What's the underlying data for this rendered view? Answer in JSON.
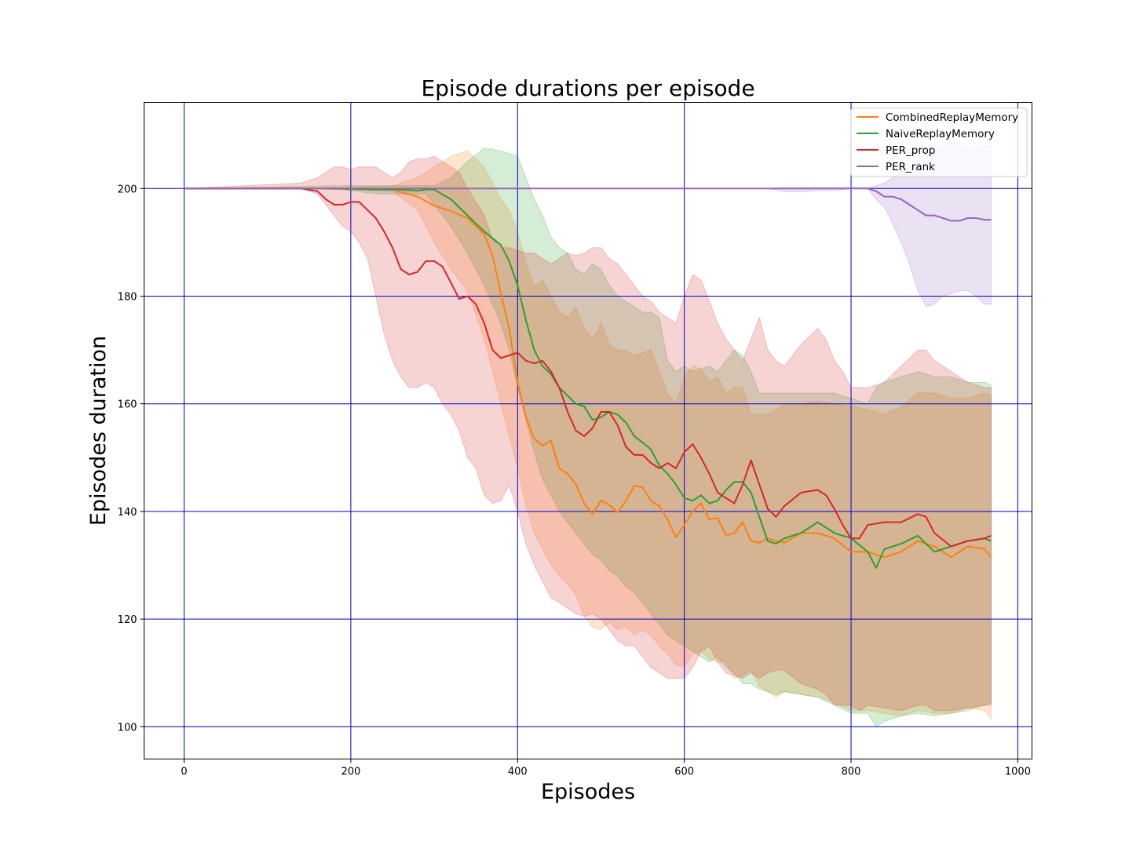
{
  "chart_data": {
    "type": "line",
    "title": "Episode durations per episode",
    "xlabel": "Episodes",
    "ylabel": "Episodes duration",
    "xlim": [
      -48,
      1017
    ],
    "ylim": [
      94,
      216
    ],
    "xticks": [
      0,
      200,
      400,
      600,
      800,
      1000
    ],
    "yticks": [
      100,
      120,
      140,
      160,
      180,
      200
    ],
    "grid": true,
    "grid_color": "#0000cc",
    "legend_position": "top-right",
    "series": [
      {
        "name": "CombinedReplayMemory",
        "color": "#ff7f0e",
        "x": [
          0,
          150,
          250,
          280,
          300,
          320,
          340,
          360,
          370,
          380,
          390,
          400,
          410,
          420,
          430,
          440,
          450,
          460,
          470,
          480,
          490,
          500,
          510,
          520,
          530,
          540,
          550,
          560,
          570,
          580,
          590,
          600,
          610,
          620,
          630,
          640,
          650,
          660,
          670,
          680,
          690,
          700,
          710,
          720,
          740,
          760,
          780,
          800,
          820,
          840,
          860,
          880,
          900,
          920,
          940,
          960,
          968
        ],
        "y": [
          200,
          200,
          199.8,
          198.5,
          196.8,
          195.8,
          194.5,
          191.5,
          187.5,
          180.5,
          174,
          164,
          157.5,
          153.5,
          152.2,
          153.2,
          148,
          147,
          145,
          141.5,
          139.5,
          142,
          141.2,
          139.8,
          142,
          144.8,
          144.5,
          142,
          141,
          138.5,
          135.2,
          137.5,
          140,
          141.5,
          138.5,
          138.8,
          135.5,
          136,
          138,
          134.5,
          134.2,
          135,
          134.5,
          134.2,
          136,
          136,
          135,
          132.5,
          132.5,
          131.5,
          132.5,
          134.5,
          133.5,
          131.5,
          133.5,
          133,
          131.5
        ],
        "lower": [
          200,
          200,
          199.5,
          196,
          190,
          185,
          181,
          172,
          166,
          160,
          154,
          148,
          141,
          136,
          133,
          130,
          128,
          126.5,
          124.5,
          120.5,
          118.5,
          118,
          119.5,
          118,
          118.5,
          117,
          118,
          117,
          115,
          113.5,
          111.5,
          111,
          113.5,
          114,
          112.5,
          112,
          112,
          109,
          109.5,
          110.5,
          107.5,
          106.5,
          105.5,
          106.5,
          106,
          105.5,
          104.5,
          103,
          103,
          102.5,
          102,
          103,
          102.5,
          102.5,
          103.5,
          103,
          101.5
        ],
        "upper": [
          200,
          200,
          200.5,
          202,
          204,
          206,
          207,
          204,
          201,
          198,
          196,
          192,
          186,
          182,
          183,
          180,
          177,
          176,
          178,
          174,
          172,
          175,
          171,
          170,
          170,
          169,
          169.5,
          170,
          166,
          162,
          160,
          165,
          167,
          166.5,
          164,
          165,
          162,
          163,
          163,
          158,
          158,
          158,
          159,
          160,
          160,
          160.5,
          160,
          159.5,
          159,
          158,
          159.5,
          162,
          162,
          161,
          161,
          162,
          161.5
        ]
      },
      {
        "name": "NaiveReplayMemory",
        "color": "#2ca02c",
        "x": [
          0,
          180,
          230,
          260,
          280,
          290,
          300,
          320,
          340,
          360,
          380,
          390,
          400,
          410,
          420,
          430,
          440,
          450,
          460,
          470,
          480,
          490,
          500,
          510,
          520,
          530,
          540,
          550,
          560,
          570,
          580,
          590,
          600,
          610,
          620,
          630,
          640,
          650,
          660,
          670,
          680,
          690,
          700,
          710,
          720,
          740,
          760,
          780,
          800,
          820,
          830,
          840,
          860,
          880,
          900,
          920,
          940,
          960,
          968
        ],
        "y": [
          200,
          200,
          199.8,
          199.8,
          199.6,
          199.8,
          199.8,
          198,
          195,
          192,
          189.5,
          186.5,
          182,
          175.5,
          170,
          167,
          165.5,
          163,
          161.5,
          160,
          159.5,
          157,
          157.5,
          158.5,
          158,
          156.5,
          154,
          152.8,
          151.5,
          148.5,
          147,
          145,
          142.5,
          142,
          143,
          141.5,
          142,
          144,
          145.5,
          145.5,
          143.5,
          139,
          134.5,
          134,
          135,
          136,
          138,
          136,
          135,
          132.5,
          129.5,
          133,
          134,
          135.5,
          132.5,
          133.5,
          134.5,
          135,
          134.5
        ],
        "lower": [
          200,
          200,
          199,
          199,
          199,
          199,
          197,
          193,
          188,
          182,
          175,
          170,
          163,
          157,
          151,
          146,
          143,
          140,
          138,
          136,
          134,
          132,
          131,
          129,
          128,
          126,
          125,
          123,
          121,
          119,
          117,
          116,
          115,
          114,
          113,
          112,
          113,
          111,
          110,
          108,
          108,
          107,
          106.5,
          106,
          106.5,
          106,
          105.5,
          104,
          102.5,
          102.5,
          100,
          101,
          102,
          102.5,
          102,
          102.5,
          103,
          104,
          104.5
        ],
        "upper": [
          200,
          200.5,
          200.5,
          200.5,
          200.5,
          200.5,
          200.5,
          202,
          205,
          207.5,
          207,
          206.5,
          206,
          202,
          198,
          195,
          191,
          189,
          188,
          185,
          184,
          186,
          185,
          182,
          180,
          179,
          178,
          177,
          177,
          176,
          168,
          166,
          167,
          166,
          166.5,
          167,
          166,
          168,
          170,
          169,
          166,
          162,
          162,
          162,
          162,
          162,
          162,
          162,
          161,
          160,
          163,
          164,
          165,
          166,
          165,
          165,
          164,
          164,
          163.5
        ]
      },
      {
        "name": "PER_prop",
        "color": "#d62728",
        "x": [
          0,
          140,
          160,
          170,
          180,
          190,
          200,
          210,
          220,
          230,
          240,
          250,
          260,
          270,
          280,
          290,
          300,
          310,
          320,
          330,
          340,
          350,
          360,
          370,
          380,
          390,
          400,
          410,
          420,
          430,
          440,
          450,
          460,
          470,
          480,
          490,
          500,
          510,
          520,
          530,
          540,
          550,
          560,
          570,
          580,
          590,
          600,
          610,
          620,
          630,
          640,
          650,
          660,
          670,
          680,
          690,
          700,
          710,
          720,
          740,
          760,
          770,
          780,
          790,
          800,
          810,
          820,
          840,
          860,
          880,
          890,
          900,
          920,
          940,
          960,
          968
        ],
        "y": [
          200,
          200,
          199.5,
          198,
          197,
          197,
          197.5,
          197.5,
          196,
          194.5,
          192,
          189,
          185,
          184,
          184.5,
          186.5,
          186.5,
          185.5,
          182.5,
          179.5,
          180,
          178.5,
          175,
          170,
          168.5,
          169,
          169.5,
          168,
          167.5,
          168,
          166,
          163,
          158.5,
          155,
          154,
          155.5,
          158.5,
          158.5,
          156,
          152,
          150.5,
          150.5,
          149,
          148,
          149,
          148,
          151,
          152.5,
          150,
          147,
          143.5,
          142.5,
          141.5,
          145,
          149.5,
          145,
          140.5,
          139,
          141,
          143.5,
          144,
          143,
          140.5,
          137.5,
          135,
          135,
          137.5,
          138,
          138,
          139.5,
          139,
          136,
          133.5,
          134.5,
          135,
          135.5
        ],
        "lower": [
          200,
          200,
          199,
          197,
          195,
          193,
          192,
          190,
          187,
          180,
          173,
          168,
          165,
          163,
          163,
          164,
          163,
          160,
          158,
          155,
          150,
          148,
          143,
          141.5,
          142,
          145,
          140,
          134,
          130,
          127,
          124,
          123,
          122,
          121,
          120.5,
          121,
          120,
          118,
          116,
          115,
          115,
          113,
          111,
          110,
          109,
          109,
          109,
          111,
          114,
          115,
          112,
          110,
          109.5,
          109,
          110,
          109,
          110,
          110.5,
          110.5,
          108,
          107,
          106,
          104,
          104,
          104,
          103,
          104,
          103.5,
          103,
          104,
          104,
          103,
          103,
          103.5,
          104,
          104
        ],
        "upper": [
          200,
          201,
          202,
          203,
          204,
          204,
          203.5,
          204,
          204,
          204,
          203,
          202,
          203,
          205,
          205.5,
          205.5,
          206,
          205,
          204,
          203,
          200,
          197.5,
          195,
          190.5,
          189,
          189,
          188.5,
          188,
          188,
          187,
          186,
          187,
          188,
          187.5,
          188,
          189,
          189,
          187,
          186,
          184,
          182,
          180,
          179,
          177,
          176,
          175,
          180,
          184,
          183,
          179,
          175,
          172,
          170,
          168,
          172,
          176,
          170,
          168,
          167,
          171,
          174,
          172,
          168,
          166,
          163,
          163,
          163,
          164,
          167,
          170,
          170,
          168,
          166,
          164,
          163,
          163
        ]
      },
      {
        "name": "PER_rank",
        "color": "#9467bd",
        "x": [
          0,
          700,
          720,
          740,
          760,
          780,
          800,
          820,
          830,
          840,
          850,
          860,
          870,
          880,
          890,
          900,
          910,
          920,
          930,
          940,
          950,
          960,
          968
        ],
        "y": [
          200,
          200,
          200,
          200,
          200,
          200,
          200,
          200,
          199.5,
          198.5,
          198.5,
          198,
          197,
          196,
          195,
          195,
          194.5,
          194,
          194,
          194.5,
          194.5,
          194.2,
          194.2
        ],
        "lower": [
          200,
          200,
          199.4,
          199.4,
          199.6,
          199.6,
          200,
          200,
          198,
          196.5,
          193.5,
          190,
          186,
          181,
          178,
          178.5,
          180,
          180.5,
          181,
          181,
          180,
          178.5,
          178.5
        ],
        "upper": [
          200,
          200,
          200.2,
          200.2,
          200.2,
          200.2,
          200.2,
          200.2,
          200.5,
          201,
          202,
          203,
          204,
          205,
          206,
          207,
          208,
          209,
          208,
          207.5,
          207.5,
          208,
          208
        ]
      }
    ]
  }
}
